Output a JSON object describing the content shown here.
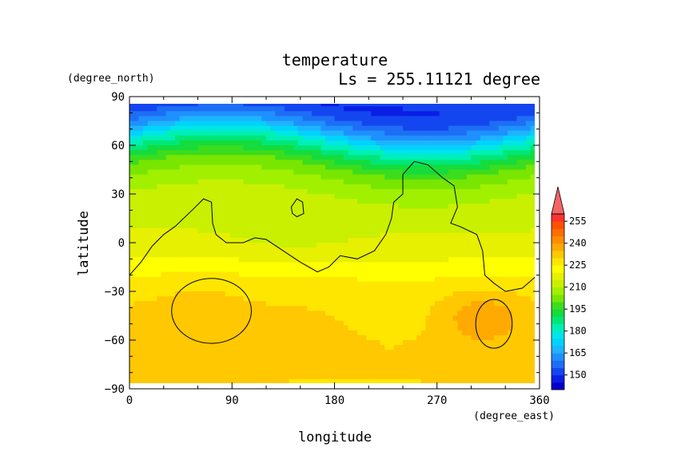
{
  "chart_data": {
    "type": "heatmap",
    "title": "temperature",
    "subtitle": "Ls = 255.11121 degree",
    "xlabel": "longitude",
    "ylabel": "latitude",
    "xunit": "(degree_east)",
    "yunit": "(degree_north)",
    "xlim": [
      0,
      360
    ],
    "ylim": [
      -90,
      90
    ],
    "xticks": [
      0,
      90,
      180,
      270,
      360
    ],
    "yticks": [
      90,
      60,
      30,
      0,
      -30,
      -60,
      -90
    ],
    "colorbar": {
      "labels": [
        150,
        165,
        180,
        195,
        210,
        225,
        240,
        255
      ],
      "levels": [
        140,
        145,
        150,
        155,
        160,
        165,
        170,
        175,
        180,
        185,
        190,
        195,
        200,
        205,
        210,
        215,
        220,
        225,
        230,
        235,
        240,
        245,
        250,
        255,
        260
      ],
      "colors": [
        "#0000c8",
        "#0a1ee6",
        "#1446f0",
        "#1e6ef5",
        "#1e90ff",
        "#1eb4ff",
        "#00d2ff",
        "#00e6e6",
        "#00f0b4",
        "#00e678",
        "#14dc3c",
        "#3cdc1e",
        "#78e600",
        "#a0f000",
        "#c8f000",
        "#e6f000",
        "#ffff00",
        "#ffe600",
        "#ffc800",
        "#ffaa00",
        "#ff8c00",
        "#ff6e00",
        "#ff5000",
        "#ff3232",
        "#f56464"
      ],
      "extend": "max"
    },
    "lat_profile": [
      [
        85,
        150
      ],
      [
        78,
        155
      ],
      [
        70,
        165
      ],
      [
        62,
        180
      ],
      [
        55,
        190
      ],
      [
        47,
        200
      ],
      [
        40,
        205
      ],
      [
        30,
        210
      ],
      [
        15,
        213
      ],
      [
        0,
        217
      ],
      [
        -15,
        222
      ],
      [
        -25,
        227
      ],
      [
        -40,
        230
      ],
      [
        -60,
        232
      ],
      [
        -85,
        230
      ]
    ],
    "contour_note": "black topography contour lines"
  }
}
